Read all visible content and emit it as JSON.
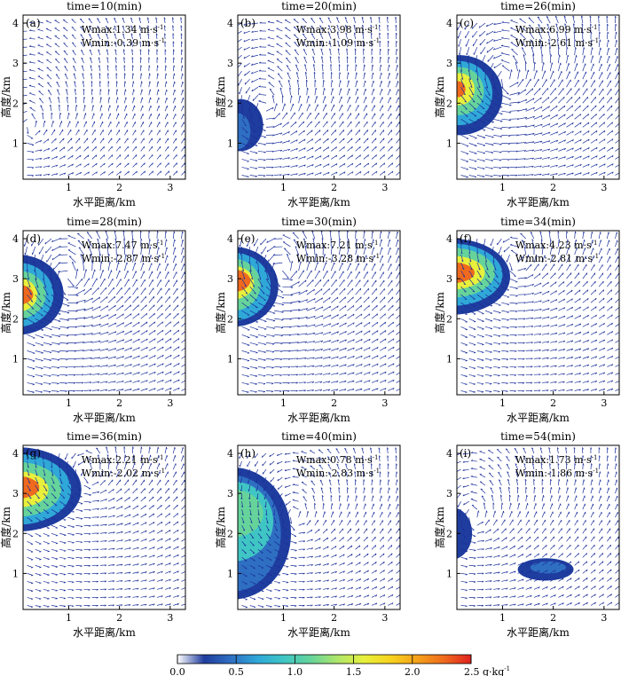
{
  "chart_data": {
    "type": "vector-contour",
    "panels": [
      {
        "label": "(a)",
        "time": "time=10(min)",
        "wmax": "Wmax:1.34 m·s",
        "wmin": "Wmin:-0.39 m·s",
        "blobs": [
          {
            "cx": 0.17,
            "cy": 1.0,
            "rx": 0.06,
            "ry": 0.08,
            "level": 0.1
          }
        ]
      },
      {
        "label": "(b)",
        "time": "time=20(min)",
        "wmax": "Wmax:3.98 m·s",
        "wmin": "Wmin:-1.09 m·s",
        "blobs": [
          {
            "cx": 0.15,
            "cy": 1.45,
            "rx": 0.45,
            "ry": 0.65,
            "level": 0.15
          },
          {
            "cx": 0.1,
            "cy": 1.3,
            "rx": 0.25,
            "ry": 0.45,
            "level": 0.35
          }
        ]
      },
      {
        "label": "(c)",
        "time": "time=26(min)",
        "wmax": "Wmax:6.99 m·s",
        "wmin": "Wmin:-2.61 m·s",
        "blobs": [
          {
            "cx": 0.15,
            "cy": 2.2,
            "rx": 0.85,
            "ry": 1.0,
            "level": 0.25
          },
          {
            "cx": 0.15,
            "cy": 2.25,
            "rx": 0.65,
            "ry": 0.8,
            "level": 0.6
          },
          {
            "cx": 0.15,
            "cy": 2.3,
            "rx": 0.48,
            "ry": 0.6,
            "level": 1.2
          },
          {
            "cx": 0.15,
            "cy": 2.35,
            "rx": 0.3,
            "ry": 0.4,
            "level": 1.7
          },
          {
            "cx": 0.12,
            "cy": 2.35,
            "rx": 0.15,
            "ry": 0.2,
            "level": 2.3
          }
        ]
      },
      {
        "label": "(d)",
        "time": "time=28(min)",
        "wmax": "Wmax:7.47 m·s",
        "wmin": "Wmin:-2.87 m·s",
        "blobs": [
          {
            "cx": 0.0,
            "cy": 2.6,
            "rx": 0.9,
            "ry": 1.0,
            "level": 0.25
          },
          {
            "cx": 0.0,
            "cy": 2.6,
            "rx": 0.7,
            "ry": 0.8,
            "level": 0.6
          },
          {
            "cx": 0.0,
            "cy": 2.6,
            "rx": 0.55,
            "ry": 0.6,
            "level": 1.2
          },
          {
            "cx": 0.0,
            "cy": 2.6,
            "rx": 0.38,
            "ry": 0.42,
            "level": 1.7
          },
          {
            "cx": 0.0,
            "cy": 2.6,
            "rx": 0.3,
            "ry": 0.25,
            "level": 2.3
          }
        ]
      },
      {
        "label": "(e)",
        "time": "time=30(min)",
        "wmax": "Wmax:7.21 m·s",
        "wmin": "Wmin:-3.28 m·s",
        "blobs": [
          {
            "cx": 0.0,
            "cy": 2.8,
            "rx": 0.9,
            "ry": 1.0,
            "level": 0.25
          },
          {
            "cx": 0.0,
            "cy": 2.8,
            "rx": 0.75,
            "ry": 0.85,
            "level": 0.6
          },
          {
            "cx": 0.0,
            "cy": 2.85,
            "rx": 0.55,
            "ry": 0.65,
            "level": 1.2
          },
          {
            "cx": 0.0,
            "cy": 2.9,
            "rx": 0.42,
            "ry": 0.42,
            "level": 1.7
          },
          {
            "cx": 0.0,
            "cy": 2.95,
            "rx": 0.35,
            "ry": 0.28,
            "level": 2.3
          }
        ]
      },
      {
        "label": "(f)",
        "time": "time=34(min)",
        "wmax": "Wmax:4.23 m·s",
        "wmin": "Wmin:-2.81 m·s",
        "blobs": [
          {
            "cx": 0.0,
            "cy": 3.05,
            "rx": 1.15,
            "ry": 0.95,
            "level": 0.25
          },
          {
            "cx": 0.0,
            "cy": 3.1,
            "rx": 1.0,
            "ry": 0.78,
            "level": 0.6
          },
          {
            "cx": 0.0,
            "cy": 3.15,
            "rx": 0.85,
            "ry": 0.62,
            "level": 1.2
          },
          {
            "cx": 0.0,
            "cy": 3.15,
            "rx": 0.65,
            "ry": 0.42,
            "level": 1.7
          },
          {
            "cx": 0.0,
            "cy": 3.15,
            "rx": 0.45,
            "ry": 0.26,
            "level": 2.3
          }
        ]
      },
      {
        "label": "(g)",
        "time": "time=36(min)",
        "wmax": "Wmax:2.21 m·s",
        "wmin": "Wmin:-2.02 m·s",
        "blobs": [
          {
            "cx": 0.0,
            "cy": 3.1,
            "rx": 1.25,
            "ry": 1.05,
            "level": 0.25
          },
          {
            "cx": 0.0,
            "cy": 3.1,
            "rx": 1.05,
            "ry": 0.88,
            "level": 0.6
          },
          {
            "cx": 0.0,
            "cy": 3.1,
            "rx": 0.85,
            "ry": 0.68,
            "level": 1.2
          },
          {
            "cx": 0.0,
            "cy": 3.1,
            "rx": 0.6,
            "ry": 0.45,
            "level": 1.7
          },
          {
            "cx": 0.0,
            "cy": 3.15,
            "rx": 0.42,
            "ry": 0.28,
            "level": 2.3
          }
        ]
      },
      {
        "label": "(h)",
        "time": "time=40(min)",
        "wmax": "Wmax:0.78 m·s",
        "wmin": "Wmin:-2.83 m·s",
        "blobs": [
          {
            "cx": 0.0,
            "cy": 2.0,
            "rx": 1.15,
            "ry": 1.65,
            "level": 0.15
          },
          {
            "cx": 0.0,
            "cy": 2.0,
            "rx": 0.95,
            "ry": 1.45,
            "level": 0.45
          },
          {
            "cx": 0.0,
            "cy": 2.3,
            "rx": 0.8,
            "ry": 1.0,
            "level": 0.9
          },
          {
            "cx": 0.0,
            "cy": 2.5,
            "rx": 0.6,
            "ry": 0.6,
            "level": 1.2
          }
        ]
      },
      {
        "label": "(i)",
        "time": "time=54(min)",
        "wmax": "Wmax:1.73 m·s",
        "wmin": "Wmin:-1.86 m·s",
        "blobs": [
          {
            "cx": 0.0,
            "cy": 2.0,
            "rx": 0.4,
            "ry": 0.65,
            "level": 0.15
          },
          {
            "cx": 1.85,
            "cy": 1.1,
            "rx": 0.55,
            "ry": 0.28,
            "level": 0.2
          },
          {
            "cx": 1.9,
            "cy": 1.15,
            "rx": 0.35,
            "ry": 0.15,
            "level": 0.4
          }
        ]
      }
    ],
    "xlabel": "水平距离/km",
    "ylabel": "高度/km",
    "xticks": [
      1,
      2,
      3
    ],
    "yticks": [
      1,
      2,
      3,
      4
    ],
    "xlim": [
      0.1,
      3.3
    ],
    "ylim": [
      0.1,
      4.2
    ],
    "exponent": "-1",
    "colorbar": {
      "ticks": [
        "0.0",
        "0.5",
        "1.0",
        "1.5",
        "2.0",
        "2.5 g·kg"
      ],
      "min": 0.0,
      "max": 2.5,
      "stops": [
        "#ffffff",
        "#1f3d9e",
        "#2f6fc2",
        "#2fa8d8",
        "#3fc6c4",
        "#66d49a",
        "#aee66a",
        "#e8f03c",
        "#f7d21e",
        "#f5a01a",
        "#ef6a1e",
        "#e0201e"
      ]
    }
  }
}
